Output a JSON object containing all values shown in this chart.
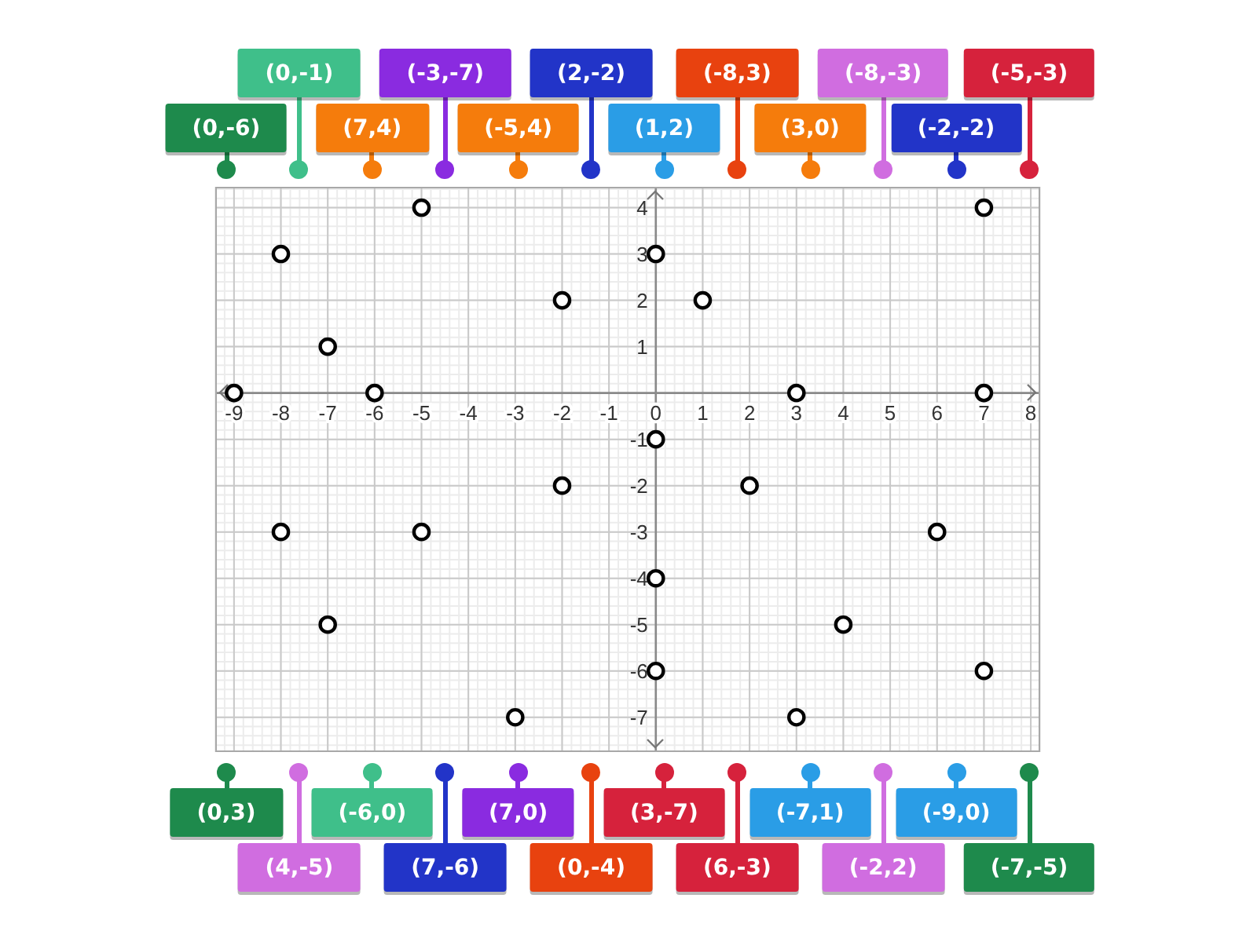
{
  "chart_data": {
    "type": "scatter",
    "x": [
      0,
      0,
      7,
      -3,
      -5,
      2,
      1,
      -8,
      3,
      -8,
      -2,
      -5,
      0,
      4,
      -6,
      7,
      7,
      0,
      3,
      6,
      -7,
      -2,
      -9,
      -7
    ],
    "values": [
      -6,
      -1,
      4,
      -7,
      4,
      -2,
      2,
      3,
      0,
      -3,
      -2,
      -3,
      3,
      -5,
      0,
      -6,
      0,
      -4,
      -7,
      -3,
      1,
      2,
      0,
      -5
    ],
    "color": "#000000",
    "marker": "circle",
    "xlim": [
      -9.4,
      8.2
    ],
    "ylim": [
      -7.75,
      4.45
    ],
    "xticks": [
      -9,
      -8,
      -7,
      -6,
      -5,
      -4,
      -3,
      -2,
      -1,
      0,
      1,
      2,
      3,
      4,
      5,
      6,
      7,
      8
    ],
    "yticks": [
      -7,
      -6,
      -5,
      -4,
      -3,
      -2,
      -1,
      1,
      2,
      3,
      4
    ],
    "grid": true,
    "annotations": [
      "(0,-6)",
      "(0,-1)",
      "(7,4)",
      "(-3,-7)",
      "(-5,4)",
      "(2,-2)",
      "(1,2)",
      "(-8,3)",
      "(3,0)",
      "(-8,-3)",
      "(-2,-2)",
      "(-5,-3)",
      "(0,3)",
      "(4,-5)",
      "(-6,0)",
      "(7,-6)",
      "(7,0)",
      "(0,-4)",
      "(3,-7)",
      "(6,-3)",
      "(-7,1)",
      "(-2,2)",
      "(-9,0)",
      "(-7,-5)"
    ]
  }
}
